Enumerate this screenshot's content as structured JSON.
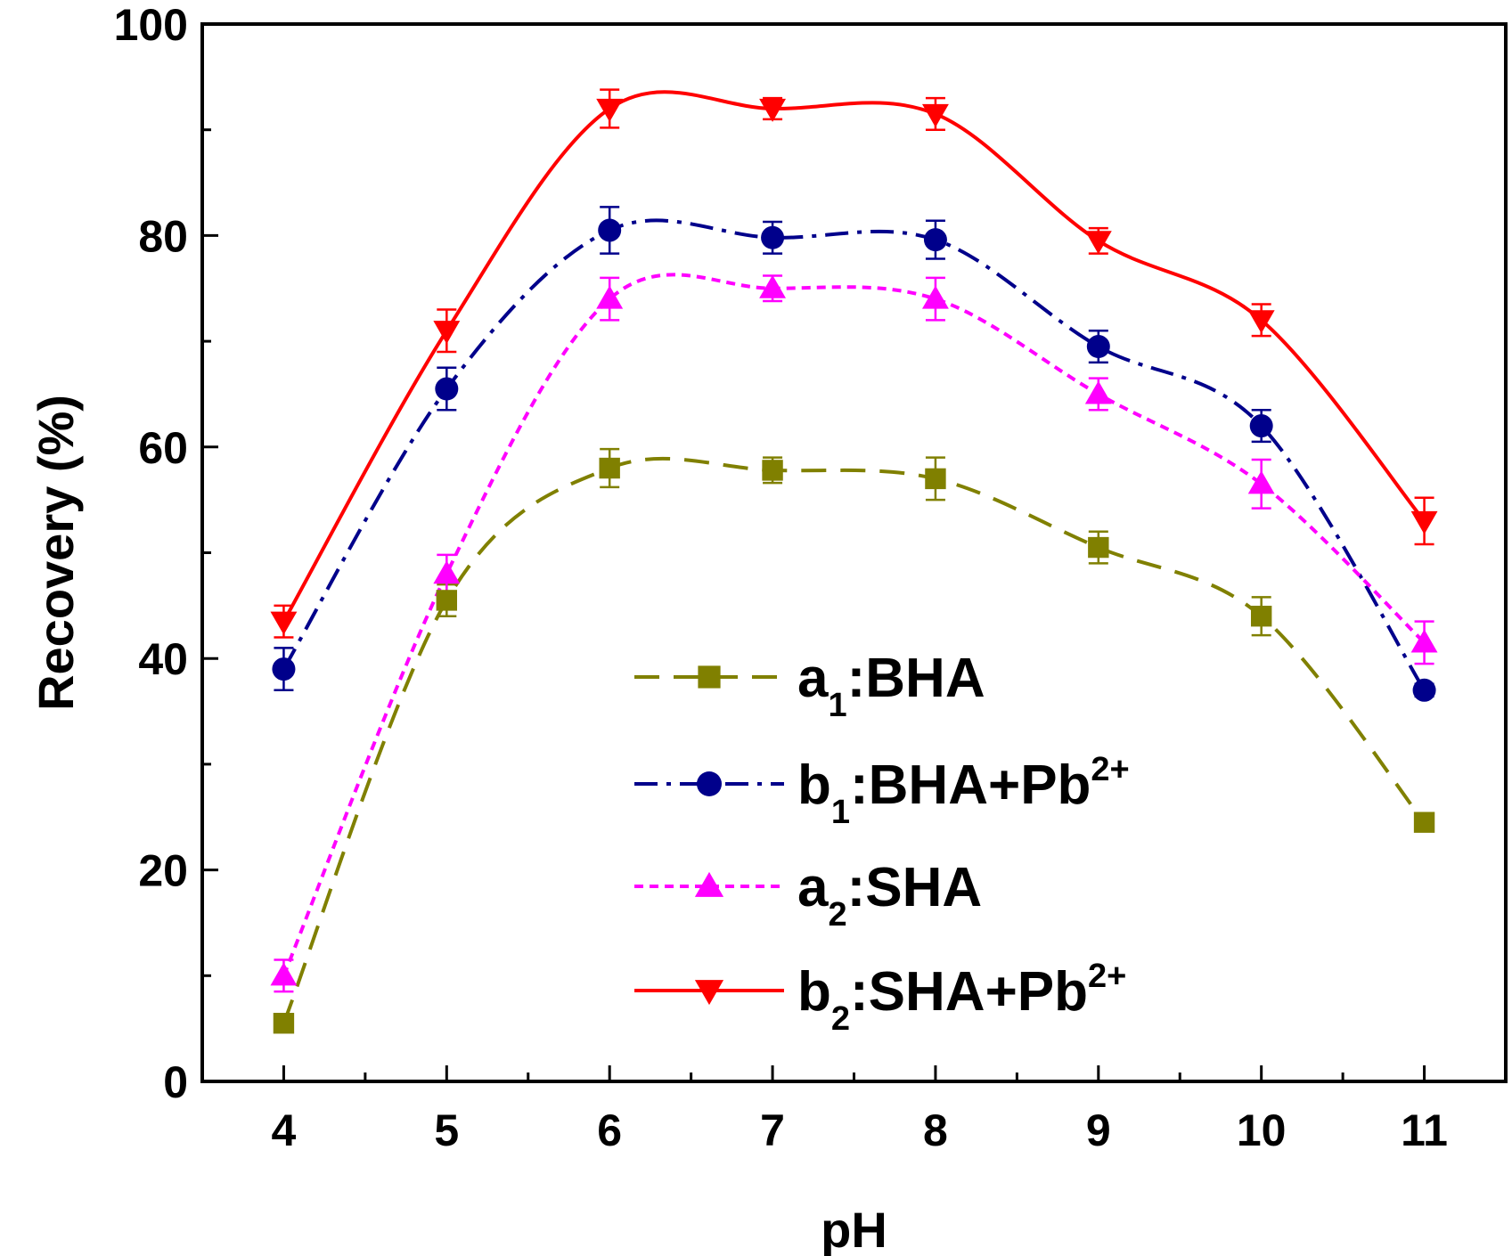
{
  "chart_data": {
    "type": "line",
    "xlabel": "pH",
    "ylabel": "Recovery (%)",
    "xlim": [
      3.5,
      11.5
    ],
    "ylim": [
      0,
      100
    ],
    "x": [
      4,
      5,
      6,
      7,
      8,
      9,
      10,
      11
    ],
    "x_ticks": [
      "4",
      "5",
      "6",
      "7",
      "8",
      "9",
      "10",
      "11"
    ],
    "y_ticks": [
      "0",
      "20",
      "40",
      "60",
      "80",
      "100"
    ],
    "legend_position": "center-right",
    "series": [
      {
        "id": "a1",
        "name": "a1:BHA",
        "legend_main": "a",
        "legend_sub": "1",
        "legend_text": ":BHA",
        "legend_sup": "",
        "color": "#808000",
        "marker": "square",
        "line_style": "dash",
        "values": [
          5.5,
          45.5,
          58,
          57.8,
          57,
          50.5,
          44,
          24.5
        ],
        "errors": [
          0.5,
          1.5,
          1.8,
          1.2,
          2.0,
          1.5,
          1.8,
          0.6
        ]
      },
      {
        "id": "b1",
        "name": "b1:BHA+Pb2+",
        "legend_main": "b",
        "legend_sub": "1",
        "legend_text": ":BHA+Pb",
        "legend_sup": "2+",
        "color": "#00008B",
        "marker": "circle",
        "line_style": "dashdot",
        "values": [
          39,
          65.5,
          80.5,
          79.8,
          79.6,
          69.5,
          62,
          37
        ],
        "errors": [
          2.0,
          2.0,
          2.2,
          1.5,
          1.8,
          1.5,
          1.5,
          0.6
        ]
      },
      {
        "id": "a2",
        "name": "a2:SHA",
        "legend_main": "a",
        "legend_sub": "2",
        "legend_text": ":SHA",
        "legend_sup": "",
        "color": "#FF00FF",
        "marker": "triangle-up",
        "line_style": "dot",
        "values": [
          10,
          48,
          74,
          75,
          74,
          65,
          56.5,
          41.5
        ],
        "errors": [
          1.5,
          1.8,
          2.0,
          1.2,
          2.0,
          1.5,
          2.3,
          2.0
        ]
      },
      {
        "id": "b2",
        "name": "b2:SHA+Pb2+",
        "legend_main": "b",
        "legend_sub": "2",
        "legend_text": ":SHA+Pb",
        "legend_sup": "2+",
        "color": "#FF0000",
        "marker": "triangle-down",
        "line_style": "solid",
        "values": [
          43.5,
          71,
          92,
          92,
          91.5,
          79.5,
          72,
          53
        ],
        "errors": [
          1.5,
          2.0,
          1.8,
          1.0,
          1.5,
          1.2,
          1.5,
          2.2
        ]
      }
    ]
  }
}
